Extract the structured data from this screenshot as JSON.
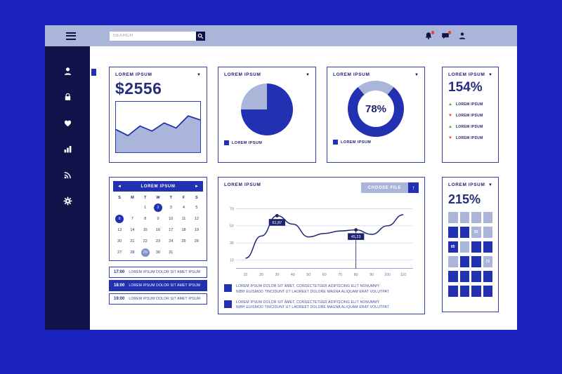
{
  "colors": {
    "background": "#1b21bb",
    "panel": "#ffffff",
    "topbar": "#a9b6d9",
    "sidebar": "#10124a",
    "accent": "#2231b1",
    "light_blue": "#a9b6d9",
    "deep_text": "#262e7d",
    "grid_line": "#c7d0e8",
    "green": "#2f9e44",
    "red": "#e03a2f",
    "badge_red": "#e8402e"
  },
  "icons": {
    "chevron_down": "▼",
    "prev": "◄",
    "next": "►",
    "upload": "↑",
    "up": "▲",
    "down": "▼"
  },
  "topbar": {
    "search_placeholder": "SEARCH",
    "icon_names": [
      "menu-icon",
      "search-icon",
      "bell-icon",
      "chat-icon",
      "user-icon"
    ]
  },
  "sidebar": {
    "items": [
      {
        "icon": "user-icon",
        "active": true
      },
      {
        "icon": "lock-icon",
        "active": false
      },
      {
        "icon": "heart-icon",
        "active": false
      },
      {
        "icon": "bar-chart-icon",
        "active": false
      },
      {
        "icon": "rss-icon",
        "active": false
      },
      {
        "icon": "gear-icon",
        "active": false
      }
    ]
  },
  "cards": {
    "revenue": {
      "title": "LOREM IPSUM",
      "value": "$2556"
    },
    "pie": {
      "title": "LOREM IPSUM",
      "legend": "LOREM IPSUM"
    },
    "donut": {
      "title": "LOREM IPSUM",
      "value_label": "78%",
      "legend": "LOREM IPSUM"
    },
    "stats": {
      "title": "LOREM IPSUM",
      "value": "154%",
      "items": [
        {
          "dir": "up",
          "label": "LOREM IPSUM"
        },
        {
          "dir": "down",
          "label": "LOREM IPSUM"
        },
        {
          "dir": "up",
          "label": "LOREM IPSUM"
        },
        {
          "dir": "down",
          "label": "LOREM IPSUM"
        }
      ]
    },
    "calendar": {
      "title": "LOREM IPSUM",
      "days": [
        "S",
        "M",
        "T",
        "W",
        "T",
        "F",
        "S"
      ],
      "weeks": [
        [
          "",
          "",
          "1",
          "2",
          "3",
          "4",
          "5"
        ],
        [
          "6",
          "7",
          "8",
          "9",
          "10",
          "11",
          "12"
        ],
        [
          "13",
          "14",
          "15",
          "16",
          "17",
          "18",
          "19"
        ],
        [
          "20",
          "21",
          "22",
          "23",
          "24",
          "25",
          "26"
        ],
        [
          "27",
          "28",
          "29",
          "30",
          "31",
          "",
          ""
        ]
      ],
      "selected_dark": [
        2,
        6
      ],
      "selected_light": [
        29
      ],
      "schedule": [
        {
          "time": "17:00",
          "text": "LOREM IPSUM DOLOR SIT AMET IPSUM",
          "active": false
        },
        {
          "time": "18:00",
          "text": "LOREM IPSUM DOLOR SIT AMET IPSUM",
          "active": true
        },
        {
          "time": "19:00",
          "text": "LOREM IPSUM DOLOR SIT AMET IPSUM",
          "active": false
        }
      ]
    },
    "linechart": {
      "title": "LOREM IPSUM",
      "button": "CHOOSE FILE",
      "legend": [
        {
          "line1": "LOREM IPSUM DOLOR SIT AMET, CONSECTETUER ADIPISCING ELIT NONUMMY",
          "line2": "NIBH EUISMOD TINCIDUNT UT LAOREET DOLORE MAGNA ALIQUAM ERAT VOLUTPAT"
        },
        {
          "line1": "LOREM IPSUM DOLOR SIT AMET, CONSECTETUER ADIPISCING ELIT NONUMMY",
          "line2": "NIBH EUISMOD TINCIDUNT UT LAOREET DOLORE MAGNA ALIQUAM ERAT VOLUTPAT"
        }
      ]
    },
    "grid": {
      "title": "LOREM IPSUM",
      "value": "215%",
      "cells": [
        [
          "L",
          "L",
          "L",
          "L"
        ],
        [
          "D",
          "D",
          "L92",
          "L"
        ],
        [
          "D85",
          "L",
          "D",
          "D"
        ],
        [
          "L",
          "D",
          "D",
          "L72"
        ],
        [
          "D",
          "D",
          "D",
          "D"
        ],
        [
          "D",
          "D",
          "D",
          "D"
        ]
      ]
    }
  },
  "chart_data": [
    {
      "id": "revenue-spark",
      "type": "area",
      "values": [
        45,
        33,
        52,
        42,
        58,
        48,
        72,
        64
      ],
      "ylim": [
        0,
        100
      ],
      "title": "LOREM IPSUM sparkline under $2556"
    },
    {
      "id": "category-pie",
      "type": "pie",
      "slices": [
        {
          "label": "LOREM IPSUM",
          "value": 75
        },
        {
          "label": "",
          "value": 25
        }
      ],
      "title": "LOREM IPSUM pie"
    },
    {
      "id": "progress-donut",
      "type": "donut",
      "value": 78,
      "label": "78%",
      "title": "LOREM IPSUM donut"
    },
    {
      "id": "main-line",
      "type": "line",
      "x": [
        10,
        20,
        30,
        40,
        50,
        60,
        70,
        80,
        90,
        100,
        110
      ],
      "y": [
        12,
        38,
        61.87,
        52,
        37,
        41,
        44,
        45.23,
        40,
        50,
        63
      ],
      "yticks": [
        10,
        30,
        50,
        70
      ],
      "ylim": [
        0,
        80
      ],
      "annotations": [
        {
          "x": 30,
          "y": 61.87,
          "label": "61,87",
          "drop": false
        },
        {
          "x": 80,
          "y": 45.23,
          "label": "45,23",
          "drop": true
        }
      ],
      "title": "LOREM IPSUM line chart"
    }
  ]
}
